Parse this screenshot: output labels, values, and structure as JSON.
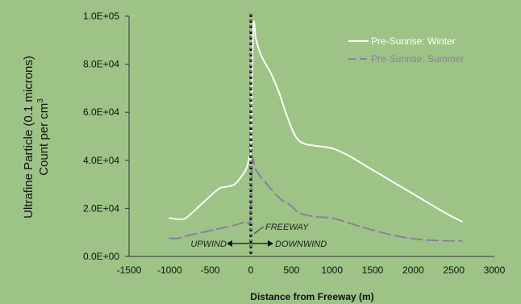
{
  "chart_data": {
    "type": "line",
    "title": "",
    "xlabel": "Distance from Freeway (m)",
    "ylabel_line1": "Ultrafine Particle (0.1 microns)",
    "ylabel_line2": "Count per cm",
    "ylabel_superscript": "3",
    "xlim": [
      -1500,
      3000
    ],
    "ylim": [
      0,
      100000
    ],
    "x_ticks": [
      -1500,
      -1000,
      -500,
      0,
      500,
      1000,
      1500,
      2000,
      2500,
      3000
    ],
    "x_tick_labels": [
      "-1500",
      "-1000",
      "-500",
      "0",
      "500",
      "1000",
      "1500",
      "2000",
      "2500",
      "3000"
    ],
    "y_ticks": [
      0,
      20000,
      40000,
      60000,
      80000,
      100000
    ],
    "y_tick_labels": [
      "0.0E+00",
      "2.0E+04",
      "4.0E+04",
      "6.0E+04",
      "8.0E+04",
      "1.0E+05"
    ],
    "grid": false,
    "legend_position": "top-right",
    "series": [
      {
        "name": "Pre-Sunrise: Winter",
        "color": "#ffffff",
        "style": "solid",
        "x": [
          -1000,
          -900,
          -800,
          -600,
          -400,
          -300,
          -200,
          -100,
          -50,
          -20,
          0,
          30,
          60,
          100,
          150,
          250,
          350,
          450,
          550,
          650,
          800,
          1000,
          1200,
          1500,
          1800,
          2100,
          2400,
          2600
        ],
        "y": [
          16000,
          15500,
          16000,
          22000,
          28000,
          29000,
          30000,
          34000,
          37000,
          41000,
          44000,
          95000,
          91000,
          86000,
          82000,
          76000,
          68000,
          58000,
          50000,
          47000,
          46000,
          45000,
          42000,
          36000,
          30000,
          24000,
          18000,
          14500
        ]
      },
      {
        "name": "Pre-Sunrise: Summer",
        "color": "#8e7f9c",
        "style": "dashed",
        "x": [
          -1000,
          -900,
          -800,
          -600,
          -400,
          -200,
          -100,
          -50,
          -10,
          0,
          20,
          50,
          100,
          200,
          300,
          400,
          500,
          600,
          800,
          1000,
          1200,
          1500,
          1800,
          2100,
          2400,
          2600
        ],
        "y": [
          7500,
          7500,
          8500,
          10000,
          11500,
          13000,
          14000,
          14500,
          13500,
          20000,
          40000,
          37000,
          34000,
          30000,
          26000,
          23000,
          21000,
          18000,
          16500,
          16000,
          14000,
          11000,
          8500,
          7000,
          6500,
          6500
        ]
      }
    ],
    "annotations": {
      "freeway": "FREEWAY",
      "upwind": "UPWIND",
      "downwind": "DOWNWIND"
    }
  }
}
